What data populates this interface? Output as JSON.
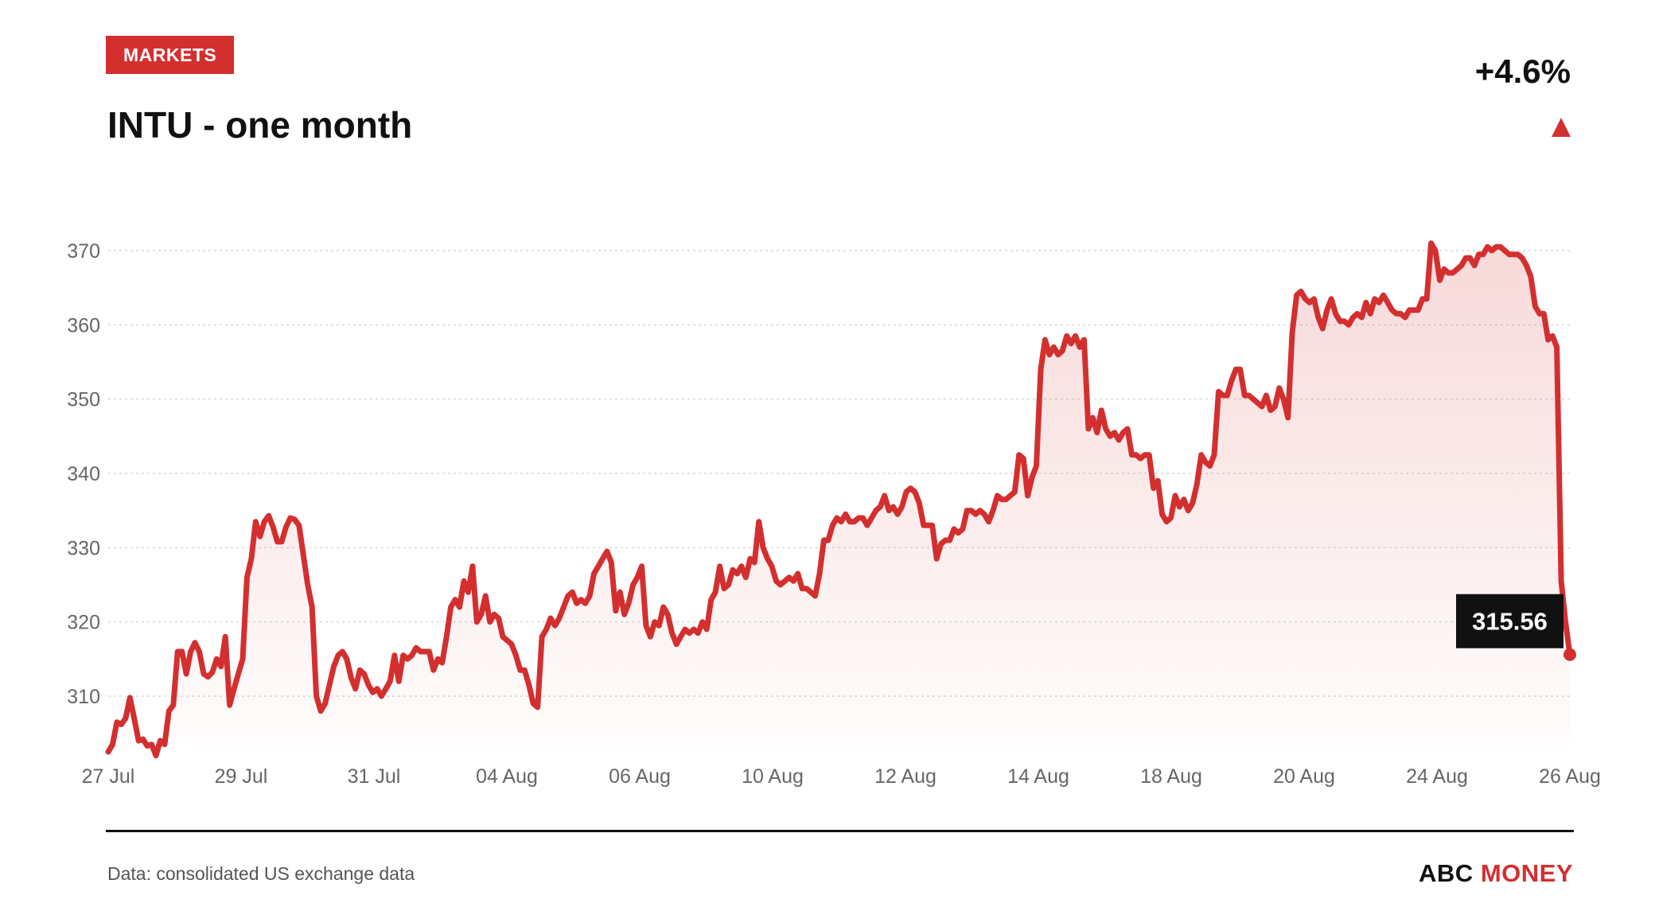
{
  "header": {
    "tag": "MARKETS",
    "title": "INTU - one month",
    "change": "+4.6%"
  },
  "footer": {
    "source": "Data: consolidated US exchange data",
    "brand_part1": "ABC",
    "brand_part2": "MONEY"
  },
  "colors": {
    "accent": "#d32f2f",
    "text": "#111111",
    "muted": "#666666",
    "grid": "#d9d9d9",
    "badge": "#111111"
  },
  "chart_data": {
    "type": "area",
    "ylim": [
      302,
      372
    ],
    "yticks": [
      310,
      320,
      330,
      340,
      350,
      360,
      370
    ],
    "xticks": [
      "27 Jul",
      "29 Jul",
      "31 Jul",
      "04 Aug",
      "06 Aug",
      "10 Aug",
      "12 Aug",
      "14 Aug",
      "18 Aug",
      "20 Aug",
      "24 Aug",
      "26 Aug"
    ],
    "last_value": "315.56",
    "series": [
      {
        "values": [
          302.5,
          303.5,
          306.5,
          306.2,
          307.0,
          309.8,
          307.0,
          304.0,
          304.2,
          303.3,
          303.5,
          302.0,
          304.0,
          303.5,
          308.0,
          308.8,
          316.0,
          316.0,
          313.0,
          316.0,
          317.2,
          316.0,
          313.0,
          312.6,
          313.2,
          315.0,
          314.0,
          318.0,
          308.8,
          311.0,
          313.0,
          315.0,
          326.0,
          328.5,
          333.5,
          331.5,
          333.5,
          334.3,
          332.8,
          330.8,
          330.8,
          332.8,
          334.0,
          333.8,
          333.0,
          329.0,
          325.0,
          322.0,
          310.0,
          308.0,
          309.0,
          311.5,
          314.0,
          315.5,
          316.0,
          315.0,
          312.5,
          311.0,
          313.5,
          313.0,
          311.5,
          310.5,
          311.0,
          310.0,
          311.0,
          312.0,
          315.5,
          312.0,
          315.5,
          315.0,
          315.5,
          316.5,
          316.0,
          316.0,
          316.0,
          313.5,
          315.0,
          314.5,
          318.0,
          322.0,
          323.0,
          322.0,
          325.5,
          324.0,
          327.5,
          320.0,
          321.0,
          323.5,
          320.0,
          321.0,
          320.5,
          318.0,
          317.5,
          317.0,
          315.5,
          313.5,
          313.5,
          311.5,
          309.0,
          308.5,
          318.0,
          319.0,
          320.5,
          319.5,
          320.5,
          322.0,
          323.5,
          324.0,
          322.5,
          323.0,
          322.5,
          323.5,
          326.5,
          327.5,
          328.5,
          329.5,
          328.0,
          321.5,
          324.0,
          321.0,
          322.5,
          325.0,
          326.0,
          327.5,
          319.5,
          318.0,
          320.0,
          319.5,
          322.0,
          321.0,
          318.5,
          317.0,
          318.0,
          319.0,
          318.5,
          319.0,
          318.5,
          320.0,
          319.0,
          323.0,
          324.0,
          327.5,
          324.5,
          325.0,
          327.0,
          326.5,
          327.5,
          326.0,
          328.5,
          328.0,
          333.5,
          330.0,
          328.5,
          327.5,
          325.5,
          325.0,
          325.5,
          326.0,
          325.5,
          326.5,
          324.5,
          324.5,
          324.0,
          323.5,
          326.5,
          331.0,
          331.0,
          333.0,
          334.0,
          333.5,
          334.5,
          333.5,
          333.5,
          334.0,
          334.0,
          333.0,
          334.0,
          335.0,
          335.5,
          337.0,
          335.0,
          335.5,
          334.5,
          335.5,
          337.5,
          338.0,
          337.5,
          336.0,
          333.0,
          333.0,
          333.0,
          328.5,
          330.5,
          331.0,
          331.0,
          332.5,
          332.0,
          332.5,
          335.0,
          335.0,
          334.5,
          335.0,
          334.5,
          333.5,
          335.0,
          337.0,
          336.5,
          336.5,
          337.0,
          337.5,
          342.5,
          342.0,
          337.0,
          339.5,
          341.0,
          354.0,
          358.0,
          356.0,
          357.0,
          356.0,
          356.5,
          358.5,
          357.5,
          358.5,
          357.0,
          358.0,
          346.0,
          347.5,
          345.5,
          348.5,
          346.0,
          345.0,
          345.5,
          344.5,
          345.5,
          346.0,
          342.5,
          342.5,
          342.0,
          342.5,
          342.5,
          338.0,
          339.0,
          334.5,
          333.5,
          334.0,
          337.0,
          335.5,
          336.5,
          335.0,
          336.0,
          338.5,
          342.5,
          341.5,
          341.0,
          342.5,
          351.0,
          350.5,
          350.5,
          352.5,
          354.0,
          354.0,
          350.5,
          350.5,
          350.0,
          349.5,
          349.0,
          350.5,
          348.5,
          349.0,
          351.5,
          350.0,
          347.5,
          359.0,
          364.0,
          364.5,
          363.5,
          363.0,
          363.5,
          361.0,
          359.5,
          362.0,
          363.5,
          361.5,
          360.5,
          360.5,
          360.0,
          361.0,
          361.5,
          361.0,
          363.0,
          361.5,
          363.5,
          363.0,
          364.0,
          363.0,
          362.0,
          361.5,
          361.5,
          361.0,
          362.0,
          362.0,
          362.0,
          363.5,
          363.5,
          371.0,
          370.0,
          366.0,
          367.5,
          367.0,
          367.0,
          367.5,
          368.0,
          369.0,
          369.0,
          368.0,
          369.5,
          369.5,
          370.5,
          370.0,
          370.5,
          370.5,
          370.0,
          369.5,
          369.5,
          369.5,
          369.0,
          368.0,
          366.5,
          362.5,
          361.5,
          361.5,
          358.0,
          358.5,
          357.0,
          325.5,
          320.0,
          315.6
        ]
      }
    ]
  }
}
